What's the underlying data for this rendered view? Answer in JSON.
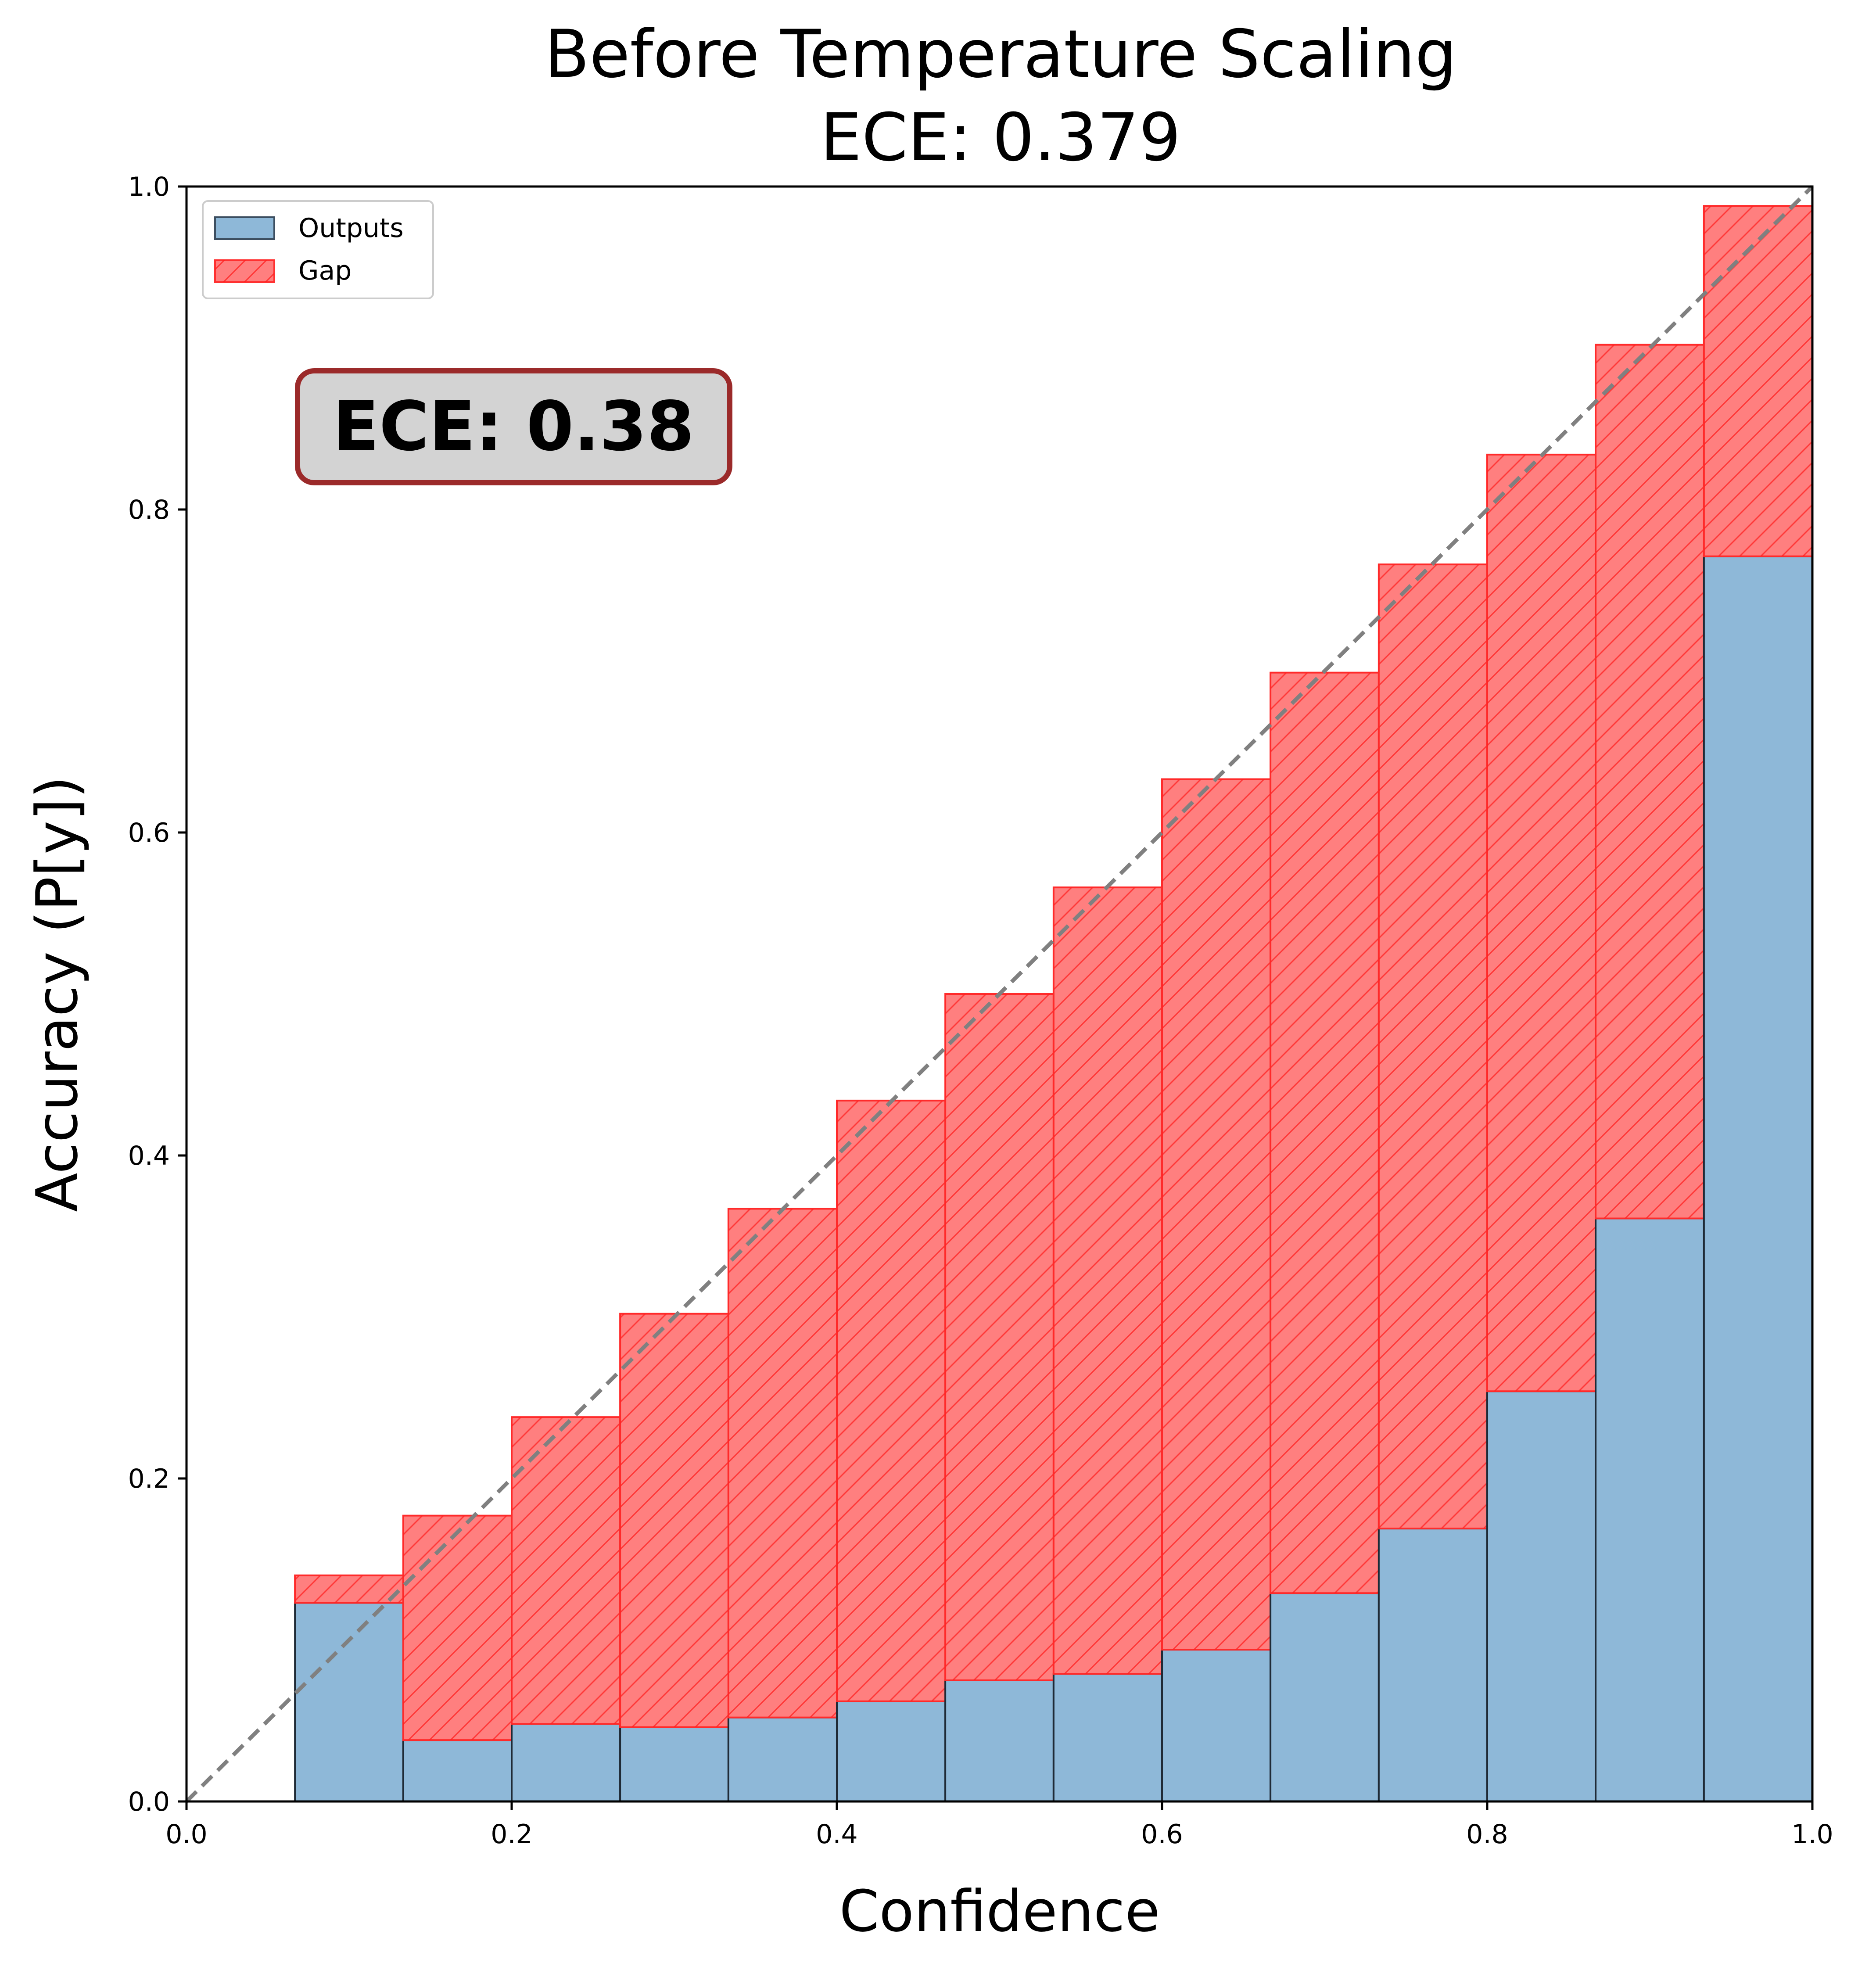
{
  "chart_data": {
    "type": "bar",
    "title": "Before Temperature Scaling",
    "subtitle": "ECE: 0.379",
    "xlabel": "Confidence",
    "ylabel": "Accuracy (P[y])",
    "xlim": [
      0.0,
      1.0
    ],
    "ylim": [
      0.0,
      1.0
    ],
    "xticks": [
      "0.0",
      "0.2",
      "0.4",
      "0.6",
      "0.8",
      "1.0"
    ],
    "yticks": [
      "0.0",
      "0.2",
      "0.4",
      "0.6",
      "0.8",
      "1.0"
    ],
    "grid": false,
    "legend": {
      "placement": "top-left",
      "entries": [
        {
          "label": "Outputs",
          "color": "#8eb8d8"
        },
        {
          "label": "Gap",
          "color": "#ff7f7f"
        }
      ]
    },
    "annotation": {
      "text": "ECE: 0.38",
      "position": [
        0.21,
        0.855
      ],
      "background": "#d3d3d3",
      "border": "#9b2a2a"
    },
    "bin_edges": [
      0.0,
      0.0667,
      0.1333,
      0.2,
      0.2667,
      0.3333,
      0.4,
      0.4667,
      0.5333,
      0.6,
      0.6667,
      0.7333,
      0.8,
      0.8667,
      0.9333,
      1.0
    ],
    "series": [
      {
        "name": "Outputs",
        "color": "#8eb8d8",
        "values": [
          0.0,
          0.123,
          0.038,
          0.048,
          0.046,
          0.052,
          0.062,
          0.075,
          0.079,
          0.094,
          0.129,
          0.169,
          0.254,
          0.361,
          0.771
        ]
      },
      {
        "name": "Gap",
        "color": "#ff7f7f",
        "confidence": [
          0.0,
          0.14,
          0.177,
          0.238,
          0.302,
          0.367,
          0.434,
          0.5,
          0.566,
          0.633,
          0.699,
          0.766,
          0.834,
          0.902,
          0.988
        ]
      }
    ],
    "reference_line": {
      "style": "dashed",
      "color": "#808080",
      "from": [
        0,
        0
      ],
      "to": [
        1,
        1
      ]
    }
  }
}
